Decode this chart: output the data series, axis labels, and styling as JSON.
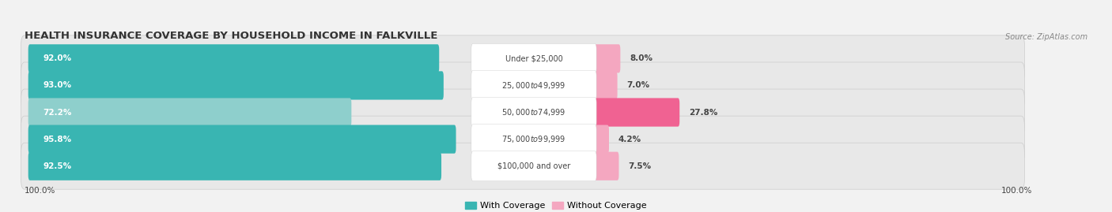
{
  "title": "HEALTH INSURANCE COVERAGE BY HOUSEHOLD INCOME IN FALKVILLE",
  "source": "Source: ZipAtlas.com",
  "categories": [
    "Under $25,000",
    "$25,000 to $49,999",
    "$50,000 to $74,999",
    "$75,000 to $99,999",
    "$100,000 and over"
  ],
  "with_coverage": [
    92.0,
    93.0,
    72.2,
    95.8,
    92.5
  ],
  "without_coverage": [
    8.0,
    7.0,
    27.8,
    4.2,
    7.5
  ],
  "color_with": "#39b5b2",
  "color_without_strong": "#f06292",
  "color_without_light": "#f4a7c0",
  "color_with_light": "#8ecfcc",
  "background": "#f2f2f2",
  "row_bg": "#e4e4e4",
  "label_bottom_left": "100.0%",
  "label_bottom_right": "100.0%",
  "legend_with": "With Coverage",
  "legend_without": "Without Coverage",
  "title_fontsize": 9.5,
  "bar_label_fontsize": 7.5,
  "category_fontsize": 7,
  "legend_fontsize": 8,
  "source_fontsize": 7
}
